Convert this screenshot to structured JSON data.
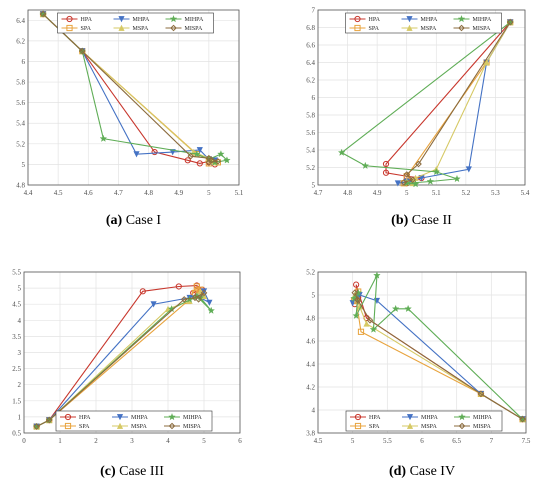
{
  "colors": {
    "HPA": "#c8372d",
    "SPA": "#e8a33d",
    "MHPA": "#4472c4",
    "MSPA": "#d6c965",
    "MIHPA": "#5fad56",
    "MISPA": "#8b6b3d"
  },
  "chart_data": [
    {
      "type": "line",
      "caption_letter": "(a)",
      "caption_text": " Case I",
      "xlim": [
        4.4,
        5.1
      ],
      "ylim": [
        4.8,
        6.5
      ],
      "xticks": [
        "4.4",
        "4.5",
        "4.6",
        "4.7",
        "4.8",
        "4.9",
        "5",
        "5.1"
      ],
      "yticks": [
        "4.8",
        "5",
        "5.2",
        "5.4",
        "5.6",
        "5.8",
        "6",
        "6.2",
        "6.4"
      ],
      "grid": true,
      "legend": "top-center",
      "series": [
        {
          "name": "HPA",
          "x": [
            4.45,
            4.58,
            4.82,
            4.93,
            4.97,
            5.0,
            5.02,
            5.0
          ],
          "y": [
            6.46,
            6.1,
            5.12,
            5.04,
            5.01,
            5.03,
            5.0,
            5.02
          ]
        },
        {
          "name": "SPA",
          "x": [
            4.45,
            4.58,
            4.96,
            5.0,
            5.03,
            5.01,
            5.0
          ],
          "y": [
            6.46,
            6.1,
            5.1,
            5.05,
            5.02,
            5.03,
            5.01
          ]
        },
        {
          "name": "MHPA",
          "x": [
            4.45,
            4.58,
            4.76,
            4.88,
            4.97,
            5.0,
            5.01,
            5.02
          ],
          "y": [
            6.46,
            6.1,
            5.1,
            5.12,
            5.14,
            5.05,
            5.02,
            5.04
          ]
        },
        {
          "name": "MSPA",
          "x": [
            4.45,
            4.58,
            4.95,
            5.0,
            5.02,
            5.01
          ],
          "y": [
            6.46,
            6.1,
            5.12,
            5.06,
            5.02,
            5.03
          ]
        },
        {
          "name": "MIHPA",
          "x": [
            4.45,
            4.58,
            4.65,
            4.96,
            5.0,
            5.04,
            5.06,
            5.02
          ],
          "y": [
            6.46,
            6.1,
            5.25,
            5.1,
            5.05,
            5.1,
            5.04,
            5.02
          ]
        },
        {
          "name": "MISPA",
          "x": [
            4.45,
            4.58,
            4.94,
            5.0,
            5.03,
            5.0,
            5.01
          ],
          "y": [
            6.46,
            6.1,
            5.08,
            5.06,
            5.03,
            5.02,
            5.04
          ]
        }
      ]
    },
    {
      "type": "line",
      "caption_letter": "(b)",
      "caption_text": " Case II",
      "xlim": [
        4.7,
        5.4
      ],
      "ylim": [
        5.0,
        7.0
      ],
      "xticks": [
        "4.7",
        "4.8",
        "4.9",
        "5",
        "5.1",
        "5.2",
        "5.3",
        "5.4"
      ],
      "yticks": [
        "5",
        "5.2",
        "5.4",
        "5.6",
        "5.8",
        "6",
        "6.2",
        "6.4",
        "6.6",
        "6.8",
        "7"
      ],
      "grid": true,
      "legend": "top-center",
      "series": [
        {
          "name": "HPA",
          "x": [
            5.35,
            4.93,
            4.93,
            5.0,
            5.05,
            5.02,
            5.0
          ],
          "y": [
            6.86,
            5.24,
            5.14,
            5.1,
            5.08,
            5.04,
            5.02
          ]
        },
        {
          "name": "SPA",
          "x": [
            5.35,
            5.27,
            5.0,
            5.02,
            4.99,
            5.01
          ],
          "y": [
            6.86,
            6.4,
            5.1,
            5.04,
            5.02,
            5.03
          ]
        },
        {
          "name": "MHPA",
          "x": [
            5.35,
            5.27,
            5.21,
            5.05,
            5.0,
            4.97,
            5.01
          ],
          "y": [
            6.86,
            6.4,
            5.18,
            5.08,
            5.04,
            5.02,
            5.03
          ]
        },
        {
          "name": "MSPA",
          "x": [
            5.35,
            5.27,
            5.1,
            5.03,
            5.0,
            5.02
          ],
          "y": [
            6.86,
            6.4,
            5.18,
            5.08,
            5.04,
            5.02
          ]
        },
        {
          "name": "MIHPA",
          "x": [
            5.35,
            4.78,
            4.86,
            5.1,
            5.17,
            5.08,
            5.0,
            5.03
          ],
          "y": [
            6.86,
            5.37,
            5.22,
            5.15,
            5.07,
            5.04,
            5.02,
            5.01
          ]
        },
        {
          "name": "MISPA",
          "x": [
            5.35,
            5.04,
            5.0,
            5.02,
            4.99
          ],
          "y": [
            6.86,
            5.24,
            5.12,
            5.06,
            5.03
          ]
        }
      ]
    },
    {
      "type": "line",
      "caption_letter": "(c)",
      "caption_text": " Case III",
      "xlim": [
        0,
        6
      ],
      "ylim": [
        0.5,
        5.5
      ],
      "xticks": [
        "0",
        "1",
        "2",
        "3",
        "4",
        "5",
        "6"
      ],
      "yticks": [
        "0.5",
        "1",
        "1.5",
        "2",
        "2.5",
        "3",
        "3.5",
        "4",
        "4.5",
        "5",
        "5.5"
      ],
      "grid": true,
      "legend": "bottom-center",
      "series": [
        {
          "name": "HPA",
          "x": [
            0.35,
            0.7,
            3.3,
            4.3,
            4.8,
            4.95,
            4.7,
            4.9
          ],
          "y": [
            0.7,
            0.9,
            4.9,
            5.05,
            5.08,
            4.95,
            4.85,
            4.9
          ]
        },
        {
          "name": "SPA",
          "x": [
            0.35,
            0.7,
            4.55,
            4.8,
            4.9,
            4.75
          ],
          "y": [
            0.7,
            0.9,
            4.6,
            5.05,
            4.95,
            4.85
          ]
        },
        {
          "name": "MHPA",
          "x": [
            0.35,
            0.7,
            3.6,
            4.6,
            5.0,
            5.15,
            4.9
          ],
          "y": [
            0.7,
            0.9,
            4.5,
            4.7,
            4.9,
            4.55,
            4.7
          ]
        },
        {
          "name": "MSPA",
          "x": [
            0.35,
            0.7,
            4.0,
            4.6,
            4.9,
            5.0
          ],
          "y": [
            0.7,
            0.9,
            4.35,
            4.6,
            4.9,
            4.75
          ]
        },
        {
          "name": "MIHPA",
          "x": [
            0.35,
            0.7,
            4.1,
            4.8,
            5.2,
            4.9,
            4.6
          ],
          "y": [
            0.7,
            0.9,
            4.35,
            4.75,
            4.3,
            4.7,
            4.65
          ]
        },
        {
          "name": "MISPA",
          "x": [
            0.35,
            0.7,
            4.45,
            4.75,
            5.0,
            4.85
          ],
          "y": [
            0.7,
            0.9,
            4.65,
            4.7,
            4.85,
            4.65
          ]
        }
      ]
    },
    {
      "type": "line",
      "caption_letter": "(d)",
      "caption_text": " Case IV",
      "xlim": [
        4.5,
        7.5
      ],
      "ylim": [
        3.8,
        5.2
      ],
      "xticks": [
        "4.5",
        "5",
        "5.5",
        "6",
        "6.5",
        "7",
        "7.5"
      ],
      "yticks": [
        "3.8",
        "4",
        "4.2",
        "4.4",
        "4.6",
        "4.8",
        "5",
        "5.2"
      ],
      "grid": true,
      "legend": "bottom-center",
      "series": [
        {
          "name": "HPA",
          "x": [
            7.45,
            6.85,
            5.2,
            5.05,
            5.08,
            5.03,
            5.06
          ],
          "y": [
            3.92,
            4.14,
            4.8,
            5.09,
            4.98,
            4.92,
            4.96
          ]
        },
        {
          "name": "SPA",
          "x": [
            7.45,
            6.85,
            5.12,
            5.05,
            5.08,
            5.02
          ],
          "y": [
            3.92,
            4.14,
            4.68,
            4.96,
            5.03,
            4.95
          ]
        },
        {
          "name": "MHPA",
          "x": [
            7.45,
            6.85,
            5.35,
            5.1,
            5.0,
            5.05
          ],
          "y": [
            3.92,
            4.14,
            4.95,
            5.0,
            4.93,
            4.98
          ]
        },
        {
          "name": "MSPA",
          "x": [
            7.45,
            6.85,
            5.2,
            5.1,
            5.03,
            5.06
          ],
          "y": [
            3.92,
            4.14,
            4.75,
            4.9,
            5.0,
            4.96
          ]
        },
        {
          "name": "MIHPA",
          "x": [
            7.45,
            5.8,
            5.62,
            5.3,
            5.35,
            5.05,
            5.08,
            5.02
          ],
          "y": [
            3.92,
            4.88,
            4.88,
            4.7,
            5.17,
            4.82,
            5.02,
            4.97
          ]
        },
        {
          "name": "MISPA",
          "x": [
            7.45,
            6.85,
            5.25,
            5.08,
            5.03,
            5.07
          ],
          "y": [
            3.92,
            4.14,
            4.78,
            4.95,
            5.02,
            4.96
          ]
        }
      ]
    }
  ]
}
